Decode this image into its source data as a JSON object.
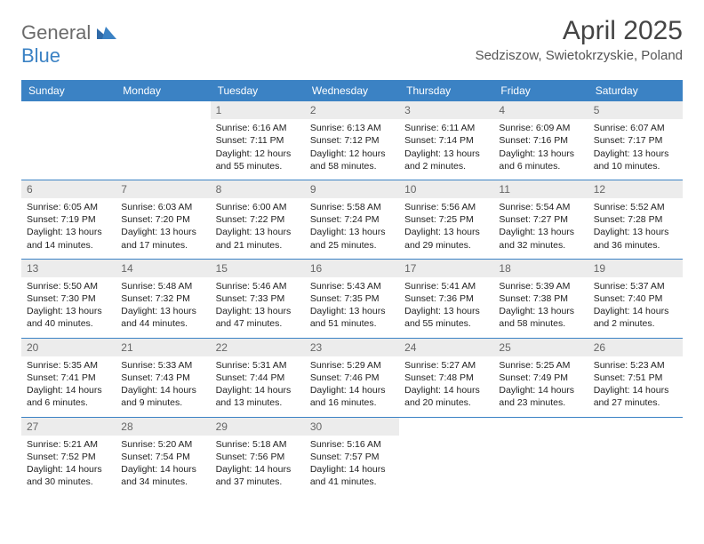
{
  "brand": {
    "part1": "General",
    "part2": "Blue"
  },
  "title": "April 2025",
  "location": "Sedziszow, Swietokrzyskie, Poland",
  "colors": {
    "header_bg": "#3b82c4",
    "header_text": "#ffffff",
    "daynum_bg": "#ececec",
    "daynum_text": "#666666",
    "border": "#3b82c4",
    "body_text": "#222222",
    "title_text": "#444444",
    "logo_gray": "#6b6b6b",
    "logo_blue": "#3b82c4"
  },
  "day_headers": [
    "Sunday",
    "Monday",
    "Tuesday",
    "Wednesday",
    "Thursday",
    "Friday",
    "Saturday"
  ],
  "weeks": [
    [
      {
        "n": "",
        "empty": true
      },
      {
        "n": "",
        "empty": true
      },
      {
        "n": "1",
        "sr": "Sunrise: 6:16 AM",
        "ss": "Sunset: 7:11 PM",
        "dl1": "Daylight: 12 hours",
        "dl2": "and 55 minutes."
      },
      {
        "n": "2",
        "sr": "Sunrise: 6:13 AM",
        "ss": "Sunset: 7:12 PM",
        "dl1": "Daylight: 12 hours",
        "dl2": "and 58 minutes."
      },
      {
        "n": "3",
        "sr": "Sunrise: 6:11 AM",
        "ss": "Sunset: 7:14 PM",
        "dl1": "Daylight: 13 hours",
        "dl2": "and 2 minutes."
      },
      {
        "n": "4",
        "sr": "Sunrise: 6:09 AM",
        "ss": "Sunset: 7:16 PM",
        "dl1": "Daylight: 13 hours",
        "dl2": "and 6 minutes."
      },
      {
        "n": "5",
        "sr": "Sunrise: 6:07 AM",
        "ss": "Sunset: 7:17 PM",
        "dl1": "Daylight: 13 hours",
        "dl2": "and 10 minutes."
      }
    ],
    [
      {
        "n": "6",
        "sr": "Sunrise: 6:05 AM",
        "ss": "Sunset: 7:19 PM",
        "dl1": "Daylight: 13 hours",
        "dl2": "and 14 minutes."
      },
      {
        "n": "7",
        "sr": "Sunrise: 6:03 AM",
        "ss": "Sunset: 7:20 PM",
        "dl1": "Daylight: 13 hours",
        "dl2": "and 17 minutes."
      },
      {
        "n": "8",
        "sr": "Sunrise: 6:00 AM",
        "ss": "Sunset: 7:22 PM",
        "dl1": "Daylight: 13 hours",
        "dl2": "and 21 minutes."
      },
      {
        "n": "9",
        "sr": "Sunrise: 5:58 AM",
        "ss": "Sunset: 7:24 PM",
        "dl1": "Daylight: 13 hours",
        "dl2": "and 25 minutes."
      },
      {
        "n": "10",
        "sr": "Sunrise: 5:56 AM",
        "ss": "Sunset: 7:25 PM",
        "dl1": "Daylight: 13 hours",
        "dl2": "and 29 minutes."
      },
      {
        "n": "11",
        "sr": "Sunrise: 5:54 AM",
        "ss": "Sunset: 7:27 PM",
        "dl1": "Daylight: 13 hours",
        "dl2": "and 32 minutes."
      },
      {
        "n": "12",
        "sr": "Sunrise: 5:52 AM",
        "ss": "Sunset: 7:28 PM",
        "dl1": "Daylight: 13 hours",
        "dl2": "and 36 minutes."
      }
    ],
    [
      {
        "n": "13",
        "sr": "Sunrise: 5:50 AM",
        "ss": "Sunset: 7:30 PM",
        "dl1": "Daylight: 13 hours",
        "dl2": "and 40 minutes."
      },
      {
        "n": "14",
        "sr": "Sunrise: 5:48 AM",
        "ss": "Sunset: 7:32 PM",
        "dl1": "Daylight: 13 hours",
        "dl2": "and 44 minutes."
      },
      {
        "n": "15",
        "sr": "Sunrise: 5:46 AM",
        "ss": "Sunset: 7:33 PM",
        "dl1": "Daylight: 13 hours",
        "dl2": "and 47 minutes."
      },
      {
        "n": "16",
        "sr": "Sunrise: 5:43 AM",
        "ss": "Sunset: 7:35 PM",
        "dl1": "Daylight: 13 hours",
        "dl2": "and 51 minutes."
      },
      {
        "n": "17",
        "sr": "Sunrise: 5:41 AM",
        "ss": "Sunset: 7:36 PM",
        "dl1": "Daylight: 13 hours",
        "dl2": "and 55 minutes."
      },
      {
        "n": "18",
        "sr": "Sunrise: 5:39 AM",
        "ss": "Sunset: 7:38 PM",
        "dl1": "Daylight: 13 hours",
        "dl2": "and 58 minutes."
      },
      {
        "n": "19",
        "sr": "Sunrise: 5:37 AM",
        "ss": "Sunset: 7:40 PM",
        "dl1": "Daylight: 14 hours",
        "dl2": "and 2 minutes."
      }
    ],
    [
      {
        "n": "20",
        "sr": "Sunrise: 5:35 AM",
        "ss": "Sunset: 7:41 PM",
        "dl1": "Daylight: 14 hours",
        "dl2": "and 6 minutes."
      },
      {
        "n": "21",
        "sr": "Sunrise: 5:33 AM",
        "ss": "Sunset: 7:43 PM",
        "dl1": "Daylight: 14 hours",
        "dl2": "and 9 minutes."
      },
      {
        "n": "22",
        "sr": "Sunrise: 5:31 AM",
        "ss": "Sunset: 7:44 PM",
        "dl1": "Daylight: 14 hours",
        "dl2": "and 13 minutes."
      },
      {
        "n": "23",
        "sr": "Sunrise: 5:29 AM",
        "ss": "Sunset: 7:46 PM",
        "dl1": "Daylight: 14 hours",
        "dl2": "and 16 minutes."
      },
      {
        "n": "24",
        "sr": "Sunrise: 5:27 AM",
        "ss": "Sunset: 7:48 PM",
        "dl1": "Daylight: 14 hours",
        "dl2": "and 20 minutes."
      },
      {
        "n": "25",
        "sr": "Sunrise: 5:25 AM",
        "ss": "Sunset: 7:49 PM",
        "dl1": "Daylight: 14 hours",
        "dl2": "and 23 minutes."
      },
      {
        "n": "26",
        "sr": "Sunrise: 5:23 AM",
        "ss": "Sunset: 7:51 PM",
        "dl1": "Daylight: 14 hours",
        "dl2": "and 27 minutes."
      }
    ],
    [
      {
        "n": "27",
        "sr": "Sunrise: 5:21 AM",
        "ss": "Sunset: 7:52 PM",
        "dl1": "Daylight: 14 hours",
        "dl2": "and 30 minutes."
      },
      {
        "n": "28",
        "sr": "Sunrise: 5:20 AM",
        "ss": "Sunset: 7:54 PM",
        "dl1": "Daylight: 14 hours",
        "dl2": "and 34 minutes."
      },
      {
        "n": "29",
        "sr": "Sunrise: 5:18 AM",
        "ss": "Sunset: 7:56 PM",
        "dl1": "Daylight: 14 hours",
        "dl2": "and 37 minutes."
      },
      {
        "n": "30",
        "sr": "Sunrise: 5:16 AM",
        "ss": "Sunset: 7:57 PM",
        "dl1": "Daylight: 14 hours",
        "dl2": "and 41 minutes."
      },
      {
        "n": "",
        "empty": true
      },
      {
        "n": "",
        "empty": true
      },
      {
        "n": "",
        "empty": true
      }
    ]
  ]
}
